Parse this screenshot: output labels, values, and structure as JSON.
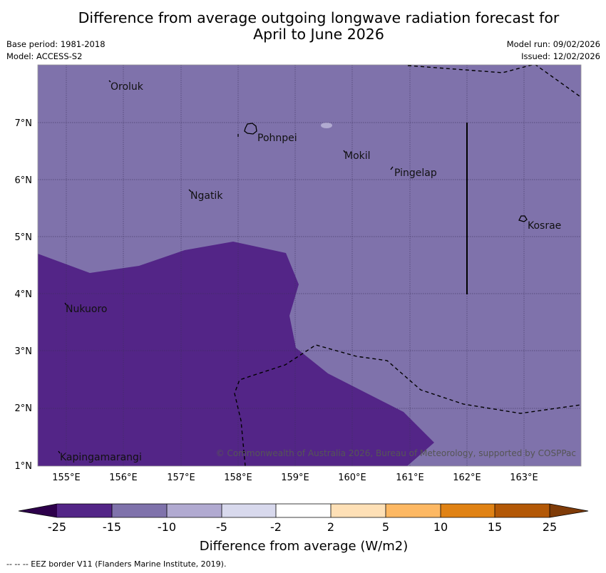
{
  "header": {
    "title_line1": "Difference from average outgoing longwave radiation forecast for",
    "title_line2": "April to June 2026",
    "base_period": "Base period: 1981-2018",
    "model": "Model: ACCESS-S2",
    "model_run": "Model run: 09/02/2026",
    "issued": "Issued: 12/02/2026"
  },
  "map": {
    "x_ticks": [
      "155°E",
      "156°E",
      "157°E",
      "158°E",
      "159°E",
      "160°E",
      "161°E",
      "162°E",
      "163°E"
    ],
    "y_ticks": [
      "1°N",
      "2°N",
      "3°N",
      "4°N",
      "5°N",
      "6°N",
      "7°N"
    ],
    "places": [
      "Oroluk",
      "Pohnpei",
      "Mokil",
      "Pingelap",
      "Ngatik",
      "Kosrae",
      "Nukuoro",
      "Kapingamarangi"
    ],
    "credit": "© Commonwealth of Australia 2026, Bureau of Meteorology, supported by COSPPac",
    "colors": {
      "deep_anomaly": "#532587",
      "moderate_anomaly": "#7f72ab",
      "light_patch": "#b1aad1"
    }
  },
  "colorbar": {
    "title": "Difference from average (W/m2)",
    "labels": [
      "-25",
      "-15",
      "-10",
      "-5",
      "-2",
      "2",
      "5",
      "10",
      "15",
      "25"
    ],
    "colors": [
      "#2d004b",
      "#532587",
      "#7f72ab",
      "#b1aad1",
      "#d8d9ed",
      "#ffffff",
      "#fee0b6",
      "#fdb863",
      "#e08214",
      "#b35806",
      "#7f3b08"
    ]
  },
  "footer": {
    "eez_legend": "--  --  -- EEZ border V11 (Flanders Marine Institute, 2019)."
  }
}
